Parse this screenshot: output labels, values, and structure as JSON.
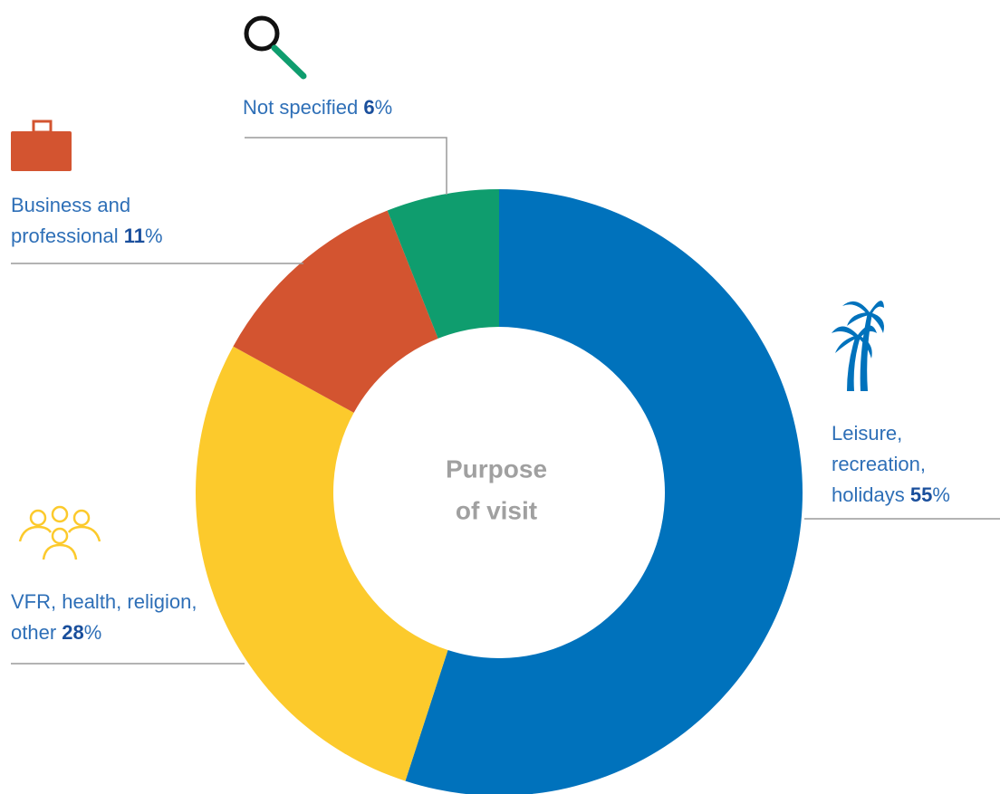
{
  "chart_data": {
    "type": "donut",
    "center_label": [
      "Purpose",
      "of visit"
    ],
    "categories": [
      "Leisure, recreation, holidays",
      "VFR, health, religion, other",
      "Business and professional",
      "Not specified"
    ],
    "values": [
      55,
      28,
      11,
      6
    ],
    "unit": "%",
    "colors": [
      "#0072bc",
      "#fcca2c",
      "#d35430",
      "#0f9d6e"
    ]
  }
}
